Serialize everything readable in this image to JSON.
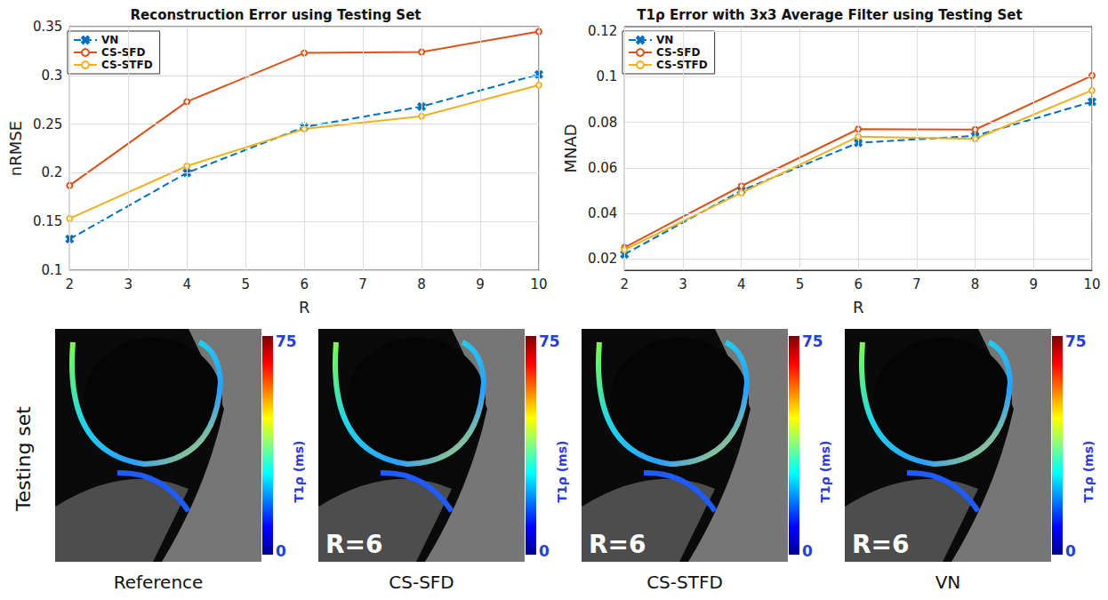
{
  "chart_data": [
    {
      "type": "line",
      "title": "Reconstruction Error using Testing Set",
      "x_label": "R",
      "y_label": "nRMSE",
      "x": [
        2,
        4,
        6,
        8,
        10
      ],
      "series": [
        {
          "name": "VN",
          "color": "#0072BD",
          "marker": "x",
          "line_style": "dashed",
          "values": [
            0.132,
            0.2,
            0.247,
            0.268,
            0.301
          ]
        },
        {
          "name": "CS-SFD",
          "color": "#D95319",
          "marker": "circle",
          "line_style": "solid",
          "values": [
            0.187,
            0.273,
            0.323,
            0.324,
            0.345
          ]
        },
        {
          "name": "CS-STFD",
          "color": "#EDB120",
          "marker": "circle",
          "line_style": "solid",
          "values": [
            0.153,
            0.207,
            0.245,
            0.258,
            0.29
          ]
        }
      ],
      "xlim": [
        2,
        10
      ],
      "xticks": [
        2,
        3,
        4,
        5,
        6,
        7,
        8,
        9,
        10
      ],
      "ylim": [
        0.1,
        0.35
      ],
      "yticks": [
        0.1,
        0.15,
        0.2,
        0.25,
        0.3,
        0.35
      ],
      "grid": true,
      "legend": "upper left"
    },
    {
      "type": "line",
      "title": "T1ρ Error with 3x3 Average Filter using Testing Set",
      "x_label": "R",
      "y_label": "MNAD",
      "x": [
        2,
        4,
        6,
        8,
        10
      ],
      "series": [
        {
          "name": "VN",
          "color": "#0072BD",
          "marker": "x",
          "line_style": "dashed",
          "values": [
            0.022,
            0.05,
            0.071,
            0.074,
            0.089
          ]
        },
        {
          "name": "CS-SFD",
          "color": "#D95319",
          "marker": "circle",
          "line_style": "solid",
          "values": [
            0.025,
            0.052,
            0.077,
            0.0768,
            0.1005
          ]
        },
        {
          "name": "CS-STFD",
          "color": "#EDB120",
          "marker": "circle",
          "line_style": "solid",
          "values": [
            0.024,
            0.049,
            0.0737,
            0.0727,
            0.094
          ]
        }
      ],
      "xlim": [
        2,
        10
      ],
      "xticks": [
        2,
        3,
        4,
        5,
        6,
        7,
        8,
        9,
        10
      ],
      "ylim": [
        0.015,
        0.122
      ],
      "yticks": [
        0.02,
        0.04,
        0.06,
        0.08,
        0.1,
        0.12
      ],
      "grid": true,
      "legend": "upper left"
    }
  ],
  "image_row": {
    "row_label": "Testing set",
    "colorbar": {
      "range": [
        0,
        75
      ],
      "ticks": [
        0,
        75
      ],
      "label": "T1ρ (ms)"
    },
    "panels": [
      {
        "caption": "Reference"
      },
      {
        "caption": "CS-SFD",
        "overlay": "R=6"
      },
      {
        "caption": "CS-STFD",
        "overlay": "R=6"
      },
      {
        "caption": "VN",
        "overlay": "R=6"
      }
    ]
  }
}
